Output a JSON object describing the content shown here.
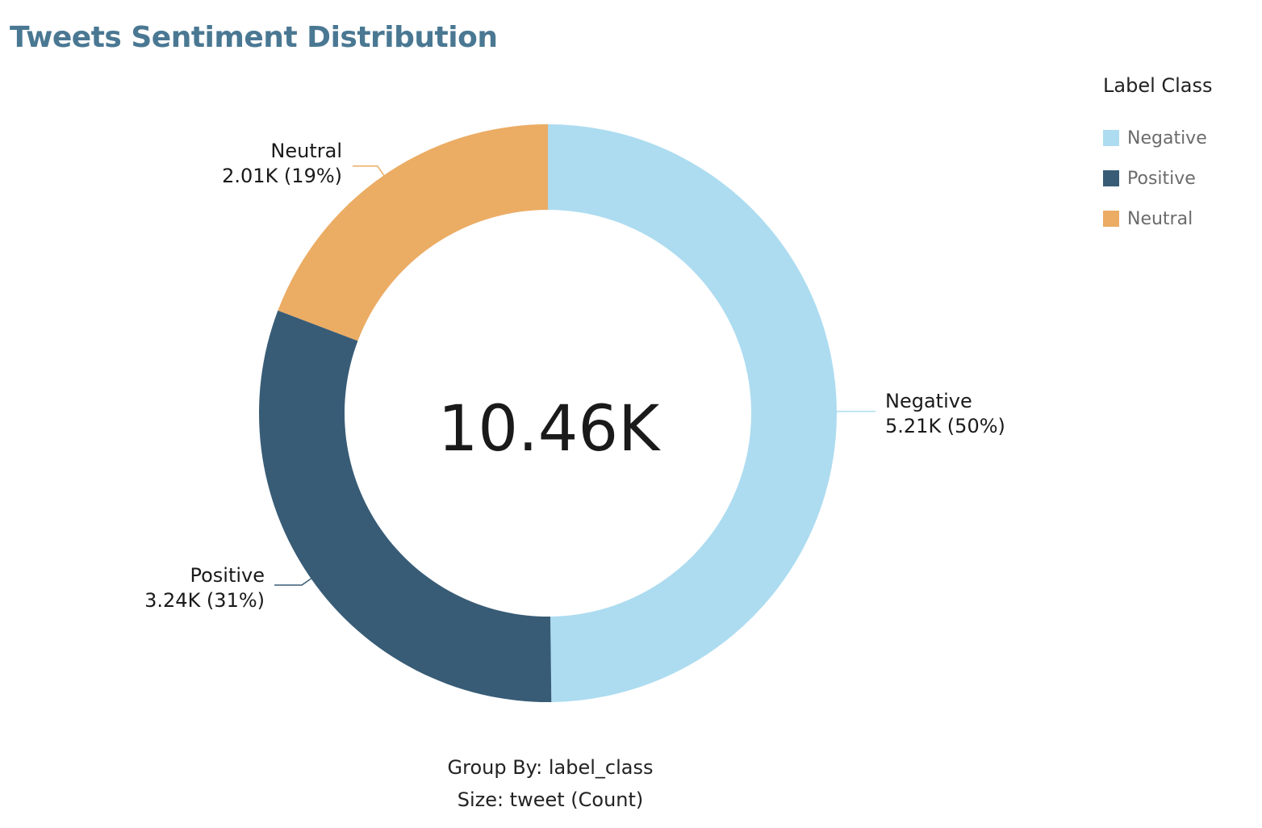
{
  "chart_data": {
    "type": "pie",
    "title": "Tweets Sentiment Distribution",
    "center_total": "10.46K",
    "legend": {
      "title": "Label Class",
      "placement": "top-right"
    },
    "slices": [
      {
        "name": "Negative",
        "value": 5.21,
        "value_label": "5.21K",
        "percent_label": "(50%)",
        "color": "#addcf0"
      },
      {
        "name": "Positive",
        "value": 3.24,
        "value_label": "3.24K",
        "percent_label": "(31%)",
        "color": "#385c76"
      },
      {
        "name": "Neutral",
        "value": 2.01,
        "value_label": "2.01K",
        "percent_label": "(19%)",
        "color": "#ebac64"
      }
    ],
    "footer": {
      "group_by": "Group By: label_class",
      "size": "Size: tweet (Count)"
    }
  }
}
